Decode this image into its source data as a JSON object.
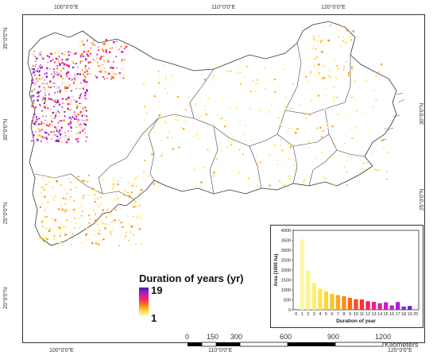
{
  "map": {
    "lon_ticks_top": [
      "100°0'0\"E",
      "110°0'0\"E",
      "120°0'0\"E"
    ],
    "lon_ticks_bottom": [
      "100°0'0\"E",
      "110°0'0\"E",
      "120°0'0\"E"
    ],
    "lat_ticks_left": [
      "35°0'0\"N",
      "30°0'0\"N",
      "25°0'0\"N",
      "20°0'0\"N"
    ],
    "lat_ticks_right": [
      "30°0'0\"N",
      "25°0'0\"N",
      "20°0'0\"N"
    ]
  },
  "legend": {
    "title": "Duration of years (yr)",
    "max_label": "19",
    "min_label": "1",
    "ramp_colors": [
      "#3a1fb8",
      "#b01fb5",
      "#ff1f6a",
      "#ff7a10",
      "#ffd43a",
      "#fffbb0"
    ]
  },
  "scalebar": {
    "labels": [
      "0",
      "150",
      "300",
      "600",
      "900",
      "1200"
    ],
    "unit": "Kilometers"
  },
  "chart_data": {
    "type": "bar",
    "ylabel": "Area (1000 ha)",
    "xlabel": "Duration of year",
    "ylim": [
      0,
      4000
    ],
    "y_ticks": [
      "0",
      "500",
      "1000",
      "1500",
      "2000",
      "2500",
      "3000",
      "3500",
      "4000"
    ],
    "categories": [
      "0",
      "1",
      "2",
      "3",
      "4",
      "5",
      "6",
      "7",
      "8",
      "9",
      "10",
      "11",
      "12",
      "13",
      "14",
      "15",
      "16",
      "17",
      "18",
      "19",
      "20"
    ],
    "values": [
      0,
      3550,
      1980,
      1350,
      1060,
      920,
      800,
      740,
      680,
      600,
      530,
      520,
      430,
      400,
      330,
      380,
      220,
      390,
      160,
      190,
      0
    ],
    "colors": [
      "#ffffff",
      "#fff7a8",
      "#fff38c",
      "#ffee6e",
      "#ffe352",
      "#ffd43a",
      "#ffc22c",
      "#ffaa20",
      "#ff8c14",
      "#ff6a10",
      "#ff4a18",
      "#ff2f3a",
      "#ff1f5e",
      "#f21f84",
      "#e21fa4",
      "#d01fc0",
      "#bb1fd0",
      "#a21fd8",
      "#8a1fd8",
      "#6a1fd0",
      "#ffffff"
    ]
  }
}
